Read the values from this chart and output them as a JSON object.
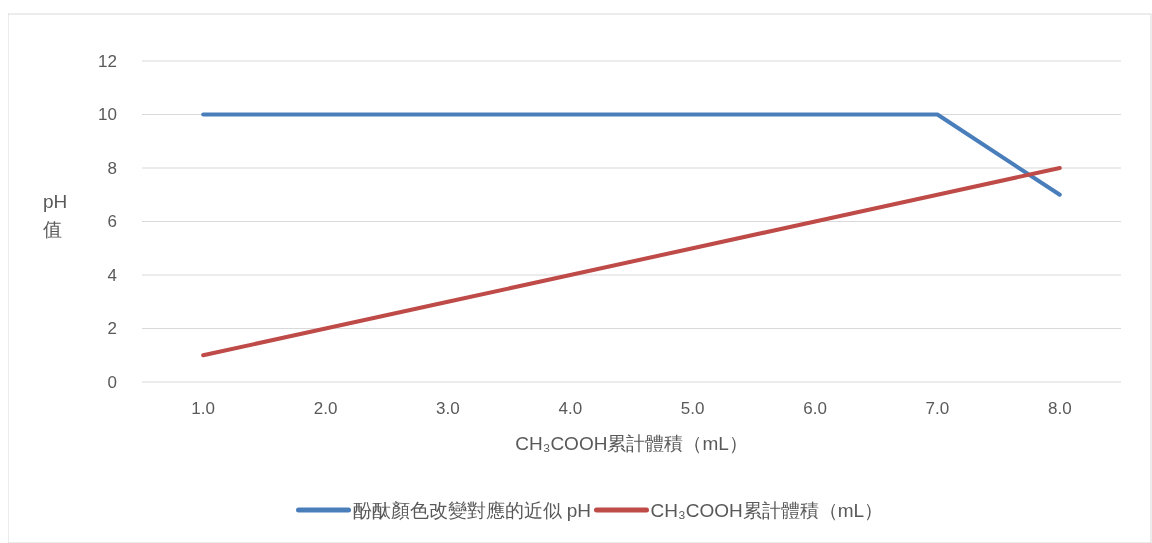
{
  "chart_data": {
    "type": "line",
    "xlabel": "CH₃COOH累計體積（mL）",
    "ylabel": "pH值",
    "categories": [
      "1.0",
      "2.0",
      "3.0",
      "4.0",
      "5.0",
      "6.0",
      "7.0",
      "8.0"
    ],
    "series": [
      {
        "name": "酚酞顏色改變對應的近似 pH",
        "color": "#4a7ebb",
        "values": [
          10,
          10,
          10,
          10,
          10,
          10,
          10,
          7
        ]
      },
      {
        "name": "CH₃COOH累計體積（mL）",
        "color": "#be4b48",
        "values": [
          1,
          2,
          3,
          4,
          5,
          6,
          7,
          8
        ]
      }
    ],
    "ylim": [
      0,
      12
    ],
    "yticks": [
      0,
      2,
      4,
      6,
      8,
      10,
      12
    ],
    "grid": "y",
    "legend": "bottom",
    "marker": "none",
    "line_style": "solid"
  }
}
